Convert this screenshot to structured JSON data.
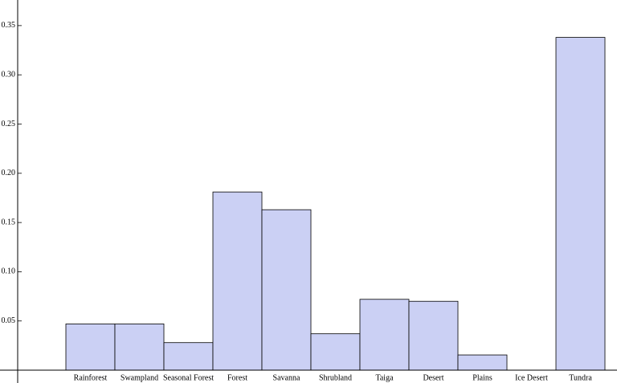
{
  "chart_data": {
    "type": "bar",
    "categories": [
      "Rainforest",
      "Swampland",
      "Seasonal Forest",
      "Forest",
      "Savanna",
      "Shrubland",
      "Taiga",
      "Desert",
      "Plains",
      "Ice Desert",
      "Tundra"
    ],
    "values": [
      0.047,
      0.047,
      0.028,
      0.181,
      0.163,
      0.037,
      0.072,
      0.07,
      0.0155,
      0,
      0.338
    ],
    "color": "#cbd0f4",
    "ylim": [
      -0.013,
      0.376
    ],
    "yticks": [
      {
        "value": 0.05,
        "label": "0.05"
      },
      {
        "value": 0.1,
        "label": "0.10"
      },
      {
        "value": 0.15,
        "label": "0.15"
      },
      {
        "value": 0.2,
        "label": "0.20"
      },
      {
        "value": 0.25,
        "label": "0.25"
      },
      {
        "value": 0.3,
        "label": "0.30"
      },
      {
        "value": 0.35,
        "label": "0.35"
      }
    ]
  }
}
